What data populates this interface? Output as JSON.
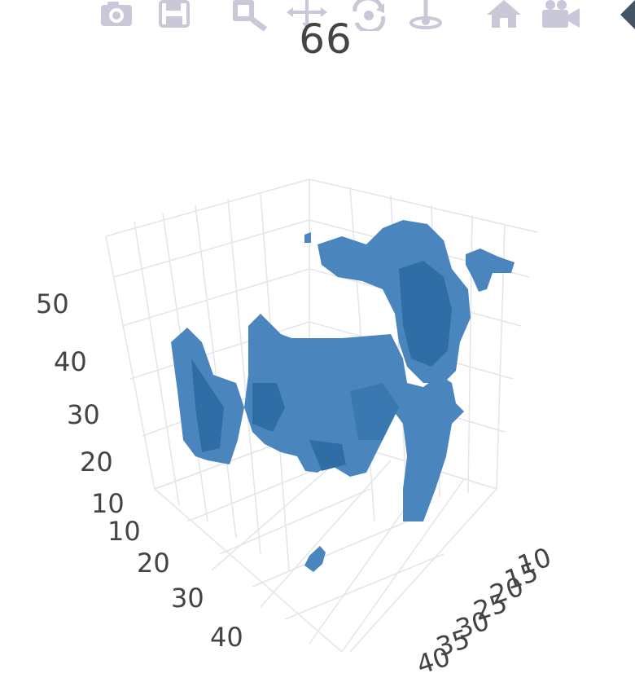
{
  "plot_title": "66",
  "modebar": {
    "buttons": [
      {
        "icon": "camera-icon"
      },
      {
        "icon": "save-icon"
      },
      {
        "icon": "zoom-icon"
      },
      {
        "icon": "pan-icon"
      },
      {
        "icon": "orbit-rotation-icon"
      },
      {
        "icon": "turntable-rotation-icon"
      },
      {
        "icon": "home-icon"
      },
      {
        "icon": "camera-view-icon"
      }
    ],
    "color": "#c8c8d8"
  },
  "scene": {
    "z_axis_ticks": [
      "50",
      "40",
      "30",
      "20",
      "10"
    ],
    "x_axis_ticks": [
      "10",
      "20",
      "30",
      "40"
    ],
    "y_axis_ticks": [
      "10",
      "15",
      "20",
      "25",
      "30",
      "35",
      "40"
    ],
    "voxel_color": "#4a86bd",
    "voxel_shadow_color": "#2e6da6",
    "grid_color": "#e4e4ea"
  }
}
